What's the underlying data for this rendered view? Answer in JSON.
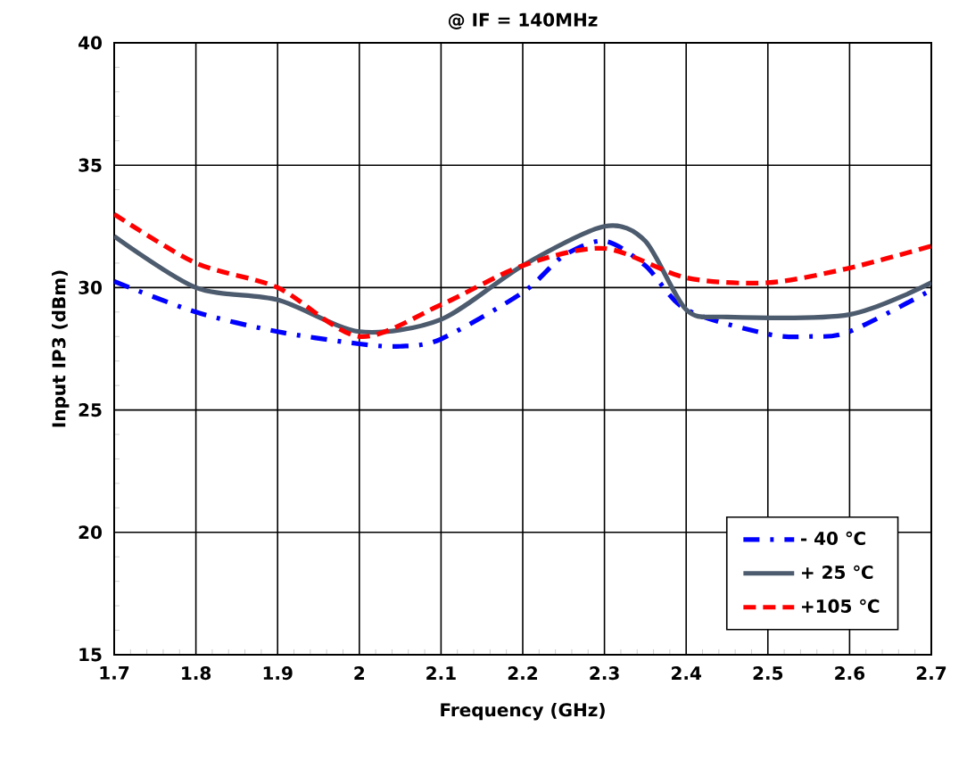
{
  "chart_data": {
    "type": "line",
    "title": "@ IF = 140MHz",
    "xlabel": "Frequency (GHz)",
    "ylabel": "Input IP3 (dBm)",
    "xlim": [
      1.7,
      2.7
    ],
    "ylim": [
      15,
      40
    ],
    "xticks": [
      1.7,
      1.8,
      1.9,
      2,
      2.1,
      2.2,
      2.3,
      2.4,
      2.5,
      2.6,
      2.7
    ],
    "yticks": [
      15,
      20,
      25,
      30,
      35,
      40
    ],
    "grid": true,
    "legend": "bottom right",
    "marker": "none",
    "series": [
      {
        "name": "- 40 ℃",
        "color": "#0000ff",
        "line_style": "dashdot",
        "x": [
          1.7,
          1.8,
          1.9,
          2.0,
          2.05,
          2.1,
          2.2,
          2.25,
          2.3,
          2.35,
          2.4,
          2.5,
          2.55,
          2.6,
          2.7
        ],
        "values": [
          30.25,
          29.0,
          28.2,
          27.7,
          27.6,
          27.9,
          29.8,
          31.3,
          31.9,
          30.9,
          29.1,
          28.1,
          28.0,
          28.2,
          29.9
        ]
      },
      {
        "name": "+ 25 ℃",
        "color": "#4d5b6e",
        "line_style": "solid",
        "x": [
          1.7,
          1.8,
          1.9,
          2.0,
          2.1,
          2.2,
          2.3,
          2.35,
          2.4,
          2.45,
          2.6,
          2.7
        ],
        "values": [
          32.1,
          30.0,
          29.5,
          28.2,
          28.7,
          30.9,
          32.5,
          31.9,
          29.1,
          28.8,
          28.9,
          30.2
        ]
      },
      {
        "name": "+105 ℃",
        "color": "#ff0000",
        "line_style": "dashed",
        "x": [
          1.7,
          1.8,
          1.9,
          2.0,
          2.1,
          2.2,
          2.3,
          2.4,
          2.5,
          2.6,
          2.7
        ],
        "values": [
          33.0,
          31.0,
          30.0,
          28.0,
          29.3,
          30.9,
          31.6,
          30.4,
          30.2,
          30.8,
          31.7
        ]
      }
    ]
  }
}
